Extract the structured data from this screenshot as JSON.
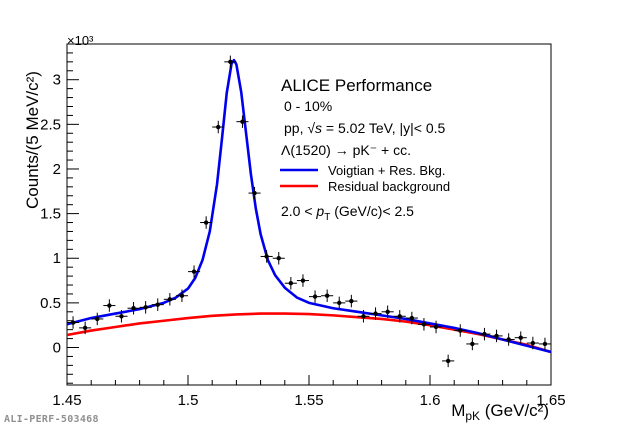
{
  "chart_data": {
    "type": "scatter",
    "experiment": "ALICE Performance",
    "centrality": "0 - 10%",
    "system": "pp,",
    "sqrt_s_symbol": "√s",
    "system_rest": " = 5.02 TeV, |y|< 0.5",
    "decay": "Λ(1520) → pK⁻ + cc.",
    "pt_range_prefix": "2.0 < ",
    "pt_symbol": "p",
    "pt_subscript": "T",
    "pt_range_suffix": " (GeV/c)< 2.5",
    "ylabel": "Counts/(5 MeV/c²)",
    "xlabel_main": "M",
    "xlabel_sub": "pK",
    "xlabel_unit": " (GeV/c²)",
    "y_multiplier": "×10³",
    "xlim": [
      1.45,
      1.65
    ],
    "ylim": [
      -0.42,
      3.4
    ],
    "x_tick_labels": [
      "1.45",
      "1.5",
      "1.55",
      "1.6",
      "1.65"
    ],
    "x_ticks": [
      1.45,
      1.5,
      1.55,
      1.6,
      1.65
    ],
    "y_tick_labels": [
      "0",
      "0.5",
      "1",
      "1.5",
      "2",
      "2.5",
      "3"
    ],
    "y_ticks": [
      0,
      0.5,
      1,
      1.5,
      2,
      2.5,
      3
    ],
    "x_minor_step": 0.01,
    "y_minor_step": 0.1,
    "data_points": {
      "x": [
        1.4525,
        1.4575,
        1.4625,
        1.4675,
        1.4725,
        1.4775,
        1.4825,
        1.4875,
        1.4925,
        1.4975,
        1.5025,
        1.5075,
        1.5125,
        1.5175,
        1.5225,
        1.5275,
        1.5325,
        1.5375,
        1.5425,
        1.5475,
        1.5525,
        1.5575,
        1.5625,
        1.5675,
        1.5725,
        1.5775,
        1.5825,
        1.5875,
        1.5925,
        1.5975,
        1.6025,
        1.6075,
        1.6125,
        1.6175,
        1.6225,
        1.6275,
        1.6325,
        1.6375,
        1.6425,
        1.6475
      ],
      "y": [
        0.28,
        0.22,
        0.32,
        0.47,
        0.35,
        0.44,
        0.45,
        0.48,
        0.54,
        0.58,
        0.85,
        1.4,
        2.47,
        3.2,
        2.53,
        1.73,
        1.02,
        1.0,
        0.72,
        0.75,
        0.57,
        0.58,
        0.5,
        0.52,
        0.35,
        0.38,
        0.4,
        0.35,
        0.33,
        0.26,
        0.23,
        -0.15,
        0.19,
        0.04,
        0.15,
        0.13,
        0.09,
        0.11,
        0.05,
        0.04
      ],
      "yerr": 0.07
    },
    "series": [
      {
        "name": "Voigtian + Res. Bkg.",
        "color": "#0000ee",
        "x": [
          1.45,
          1.46,
          1.47,
          1.48,
          1.49,
          1.495,
          1.5,
          1.503,
          1.506,
          1.509,
          1.512,
          1.514,
          1.516,
          1.518,
          1.519,
          1.52,
          1.522,
          1.524,
          1.526,
          1.528,
          1.53,
          1.533,
          1.536,
          1.54,
          1.545,
          1.55,
          1.56,
          1.57,
          1.58,
          1.59,
          1.6,
          1.61,
          1.62,
          1.63,
          1.64,
          1.65
        ],
        "y": [
          0.26,
          0.33,
          0.38,
          0.43,
          0.5,
          0.56,
          0.66,
          0.78,
          0.98,
          1.3,
          1.83,
          2.33,
          2.85,
          3.18,
          3.22,
          3.17,
          2.86,
          2.4,
          1.94,
          1.56,
          1.27,
          0.98,
          0.81,
          0.67,
          0.56,
          0.5,
          0.44,
          0.4,
          0.36,
          0.32,
          0.27,
          0.22,
          0.16,
          0.09,
          0.02,
          -0.05
        ]
      },
      {
        "name": "Residual background",
        "color": "#ff0000",
        "x": [
          1.45,
          1.46,
          1.47,
          1.48,
          1.49,
          1.5,
          1.51,
          1.52,
          1.53,
          1.54,
          1.55,
          1.56,
          1.57,
          1.58,
          1.59,
          1.6,
          1.61,
          1.62,
          1.63,
          1.64,
          1.65
        ],
        "y": [
          0.14,
          0.19,
          0.23,
          0.27,
          0.3,
          0.33,
          0.355,
          0.37,
          0.38,
          0.38,
          0.375,
          0.36,
          0.34,
          0.32,
          0.29,
          0.25,
          0.2,
          0.15,
          0.09,
          0.03,
          -0.05
        ]
      }
    ],
    "legend_position": "top-right",
    "grid": false
  },
  "footer": {
    "figure_id": "ALI-PERF-503468"
  }
}
